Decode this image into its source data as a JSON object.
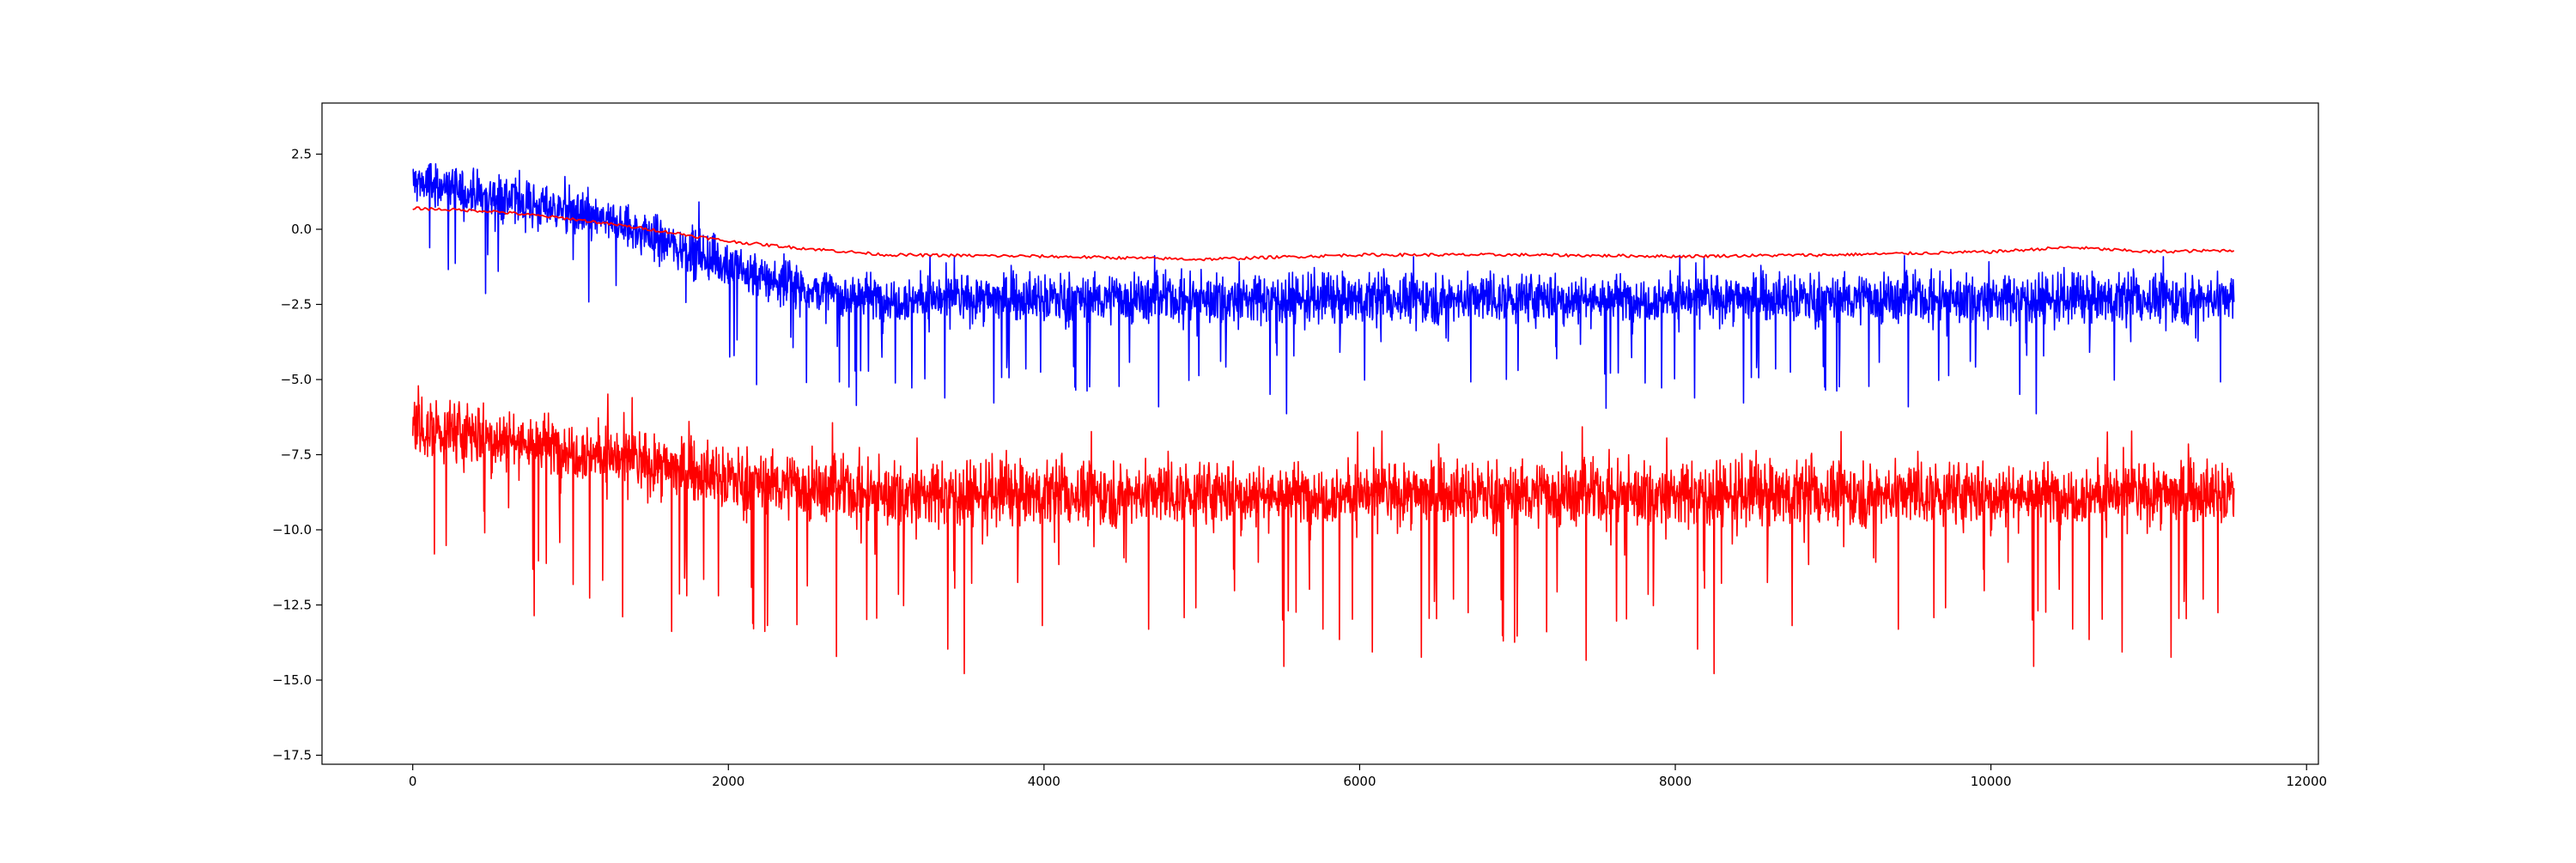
{
  "chart_data": {
    "type": "line",
    "title": "",
    "xlabel": "",
    "ylabel": "",
    "xlim": [
      -575,
      12075
    ],
    "ylim": [
      -17.8,
      4.2
    ],
    "x_ticks": [
      0,
      2000,
      4000,
      6000,
      8000,
      10000,
      12000
    ],
    "x_tick_labels": [
      "0",
      "2000",
      "4000",
      "6000",
      "8000",
      "10000",
      "12000"
    ],
    "y_ticks": [
      2.5,
      0.0,
      -2.5,
      -5.0,
      -7.5,
      -10.0,
      -12.5,
      -15.0,
      -17.5
    ],
    "y_tick_labels": [
      "2.5",
      "0.0",
      "−2.5",
      "−5.0",
      "−7.5",
      "−10.0",
      "−12.5",
      "−15.0",
      "−17.5"
    ],
    "grid": false,
    "legend": "none",
    "x_range_of_series": [
      0,
      11540
    ],
    "series": [
      {
        "color": "#0000ff",
        "style": "noisy",
        "mean_profile": [
          [
            0,
            1.6
          ],
          [
            200,
            1.4
          ],
          [
            600,
            1.0
          ],
          [
            1000,
            0.6
          ],
          [
            1400,
            0.0
          ],
          [
            1800,
            -0.8
          ],
          [
            2200,
            -1.6
          ],
          [
            2600,
            -2.1
          ],
          [
            3000,
            -2.3
          ],
          [
            11540,
            -2.3
          ]
        ],
        "noise_amplitude": 1.0,
        "spike_amplitude": 2.2,
        "max": 3.2,
        "min": -6.4
      },
      {
        "color": "#ff0000",
        "style": "smooth",
        "points": [
          [
            0,
            0.7
          ],
          [
            500,
            0.6
          ],
          [
            1000,
            0.35
          ],
          [
            1500,
            0.0
          ],
          [
            2000,
            -0.4
          ],
          [
            2400,
            -0.6
          ],
          [
            3000,
            -0.85
          ],
          [
            4000,
            -0.9
          ],
          [
            5000,
            -1.0
          ],
          [
            6000,
            -0.85
          ],
          [
            7000,
            -0.85
          ],
          [
            8000,
            -0.9
          ],
          [
            9000,
            -0.85
          ],
          [
            10000,
            -0.75
          ],
          [
            10500,
            -0.6
          ],
          [
            11000,
            -0.75
          ],
          [
            11540,
            -0.7
          ]
        ],
        "wiggle_amplitude": 0.1
      },
      {
        "color": "#ff0000",
        "style": "noisy",
        "mean_profile": [
          [
            0,
            -6.6
          ],
          [
            500,
            -6.9
          ],
          [
            1000,
            -7.3
          ],
          [
            1500,
            -7.8
          ],
          [
            2000,
            -8.3
          ],
          [
            2500,
            -8.6
          ],
          [
            3000,
            -8.8
          ],
          [
            11540,
            -8.8
          ]
        ],
        "noise_amplitude": 1.3,
        "spike_amplitude": 3.5,
        "max": -4.2,
        "min": -16.9
      }
    ]
  }
}
